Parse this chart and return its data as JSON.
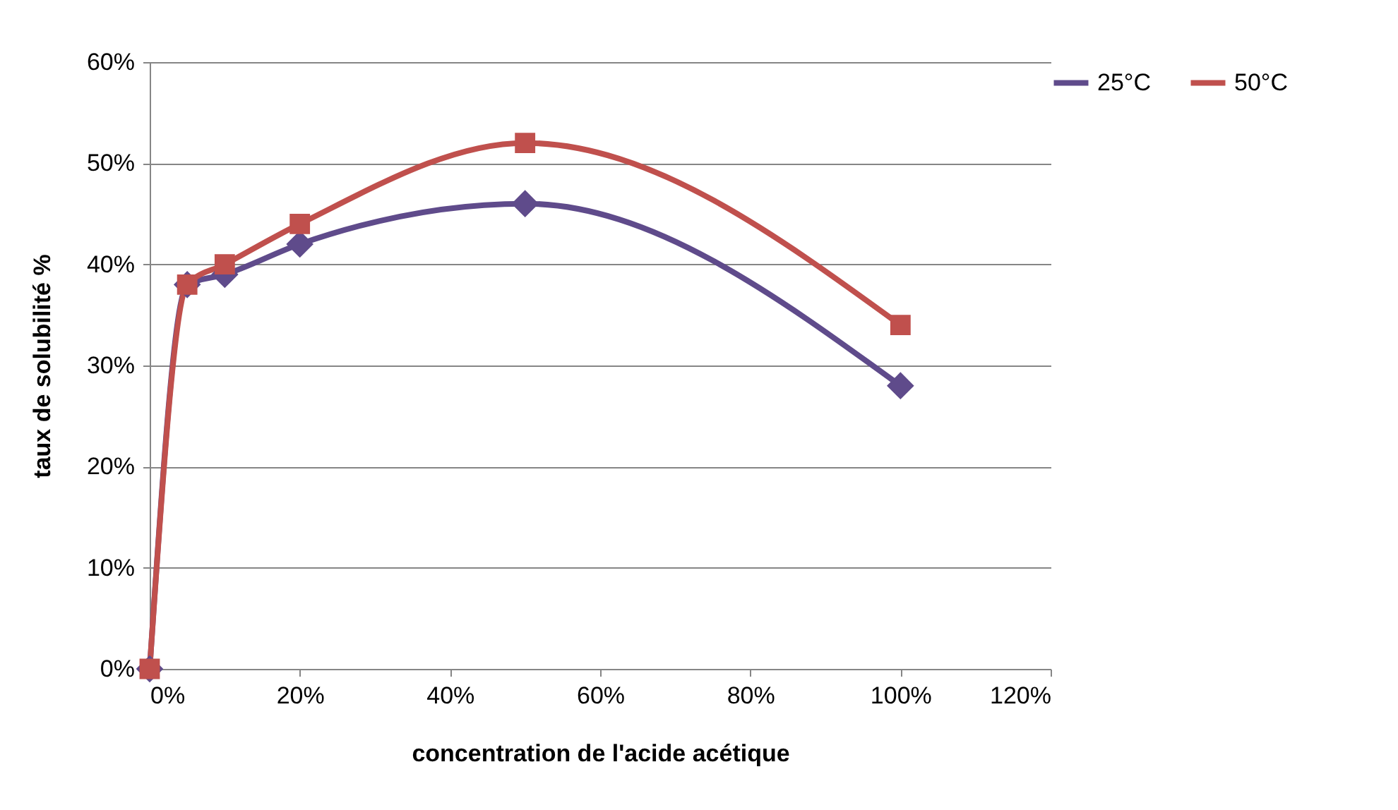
{
  "chart_data": {
    "type": "line",
    "xlabel": "concentration de l'acide acétique",
    "ylabel": "taux de solubilité %",
    "x": [
      0,
      5,
      10,
      20,
      50,
      100
    ],
    "series": [
      {
        "name": "25°C",
        "color": "#5f4b8b",
        "marker": "diamond",
        "values": [
          0,
          38,
          39,
          42,
          46,
          28
        ]
      },
      {
        "name": "50°C",
        "color": "#c0504d",
        "marker": "square",
        "values": [
          0,
          38,
          40,
          44,
          52,
          34
        ]
      }
    ],
    "xlim": [
      0,
      120
    ],
    "ylim": [
      0,
      60
    ],
    "xticks": [
      {
        "value": 0,
        "label": "0%"
      },
      {
        "value": 20,
        "label": "20%"
      },
      {
        "value": 40,
        "label": "40%"
      },
      {
        "value": 60,
        "label": "60%"
      },
      {
        "value": 80,
        "label": "80%"
      },
      {
        "value": 100,
        "label": "100%"
      },
      {
        "value": 120,
        "label": "120%"
      }
    ],
    "yticks": [
      {
        "value": 0,
        "label": "0%"
      },
      {
        "value": 10,
        "label": "10%"
      },
      {
        "value": 20,
        "label": "20%"
      },
      {
        "value": 30,
        "label": "30%"
      },
      {
        "value": 40,
        "label": "40%"
      },
      {
        "value": 50,
        "label": "50%"
      },
      {
        "value": 60,
        "label": "60%"
      }
    ],
    "grid": "y",
    "legend": "right",
    "line_style": "solid"
  }
}
